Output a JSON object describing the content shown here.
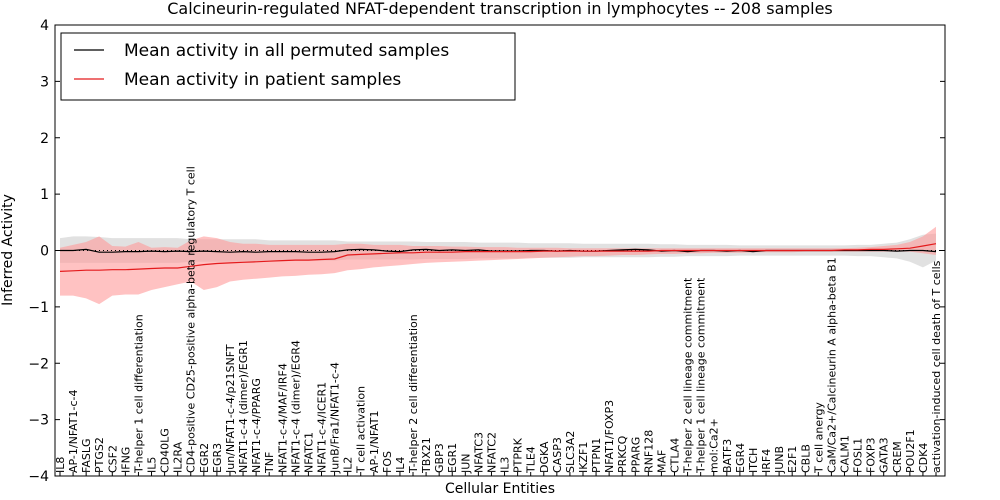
{
  "chart_data": {
    "type": "line",
    "title": "Calcineurin-regulated NFAT-dependent transcription in lymphocytes -- 208 samples",
    "xlabel": "Cellular Entities",
    "ylabel": "Inferred Activity",
    "ylim": [
      -4,
      4
    ],
    "yticks": [
      -4,
      -3,
      -2,
      -1,
      0,
      1,
      2,
      3,
      4
    ],
    "grid": false,
    "legend_position": "top-left",
    "categories": [
      "IL8",
      "AP-1/NFAT1-c-4",
      "FASLG",
      "PTGS2",
      "CSF2",
      "IFNG",
      "T-helper 1 cell differentiation",
      "IL5",
      "CD40LG",
      "IL2RA",
      "CD4-positive CD25-positive alpha-beta regulatory T cell",
      "EGR2",
      "EGR3",
      "Jun/NFAT1-c-4/p21SNFT",
      "NFAT1-c-4 (dimer)/EGR1",
      "NFAT1-c-4/PPARG",
      "TNF",
      "NFAT1-c-4/MAF/IRF4",
      "NFAT1-c-4 (dimer)/EGR4",
      "NFATC1",
      "NFAT1-c-4/ICER1",
      "JunB/Fra1/NFAT1-c-4",
      "IL2",
      "T cell activation",
      "AP-1/NFAT1",
      "FOS",
      "IL4",
      "T-helper 2 cell differentiation",
      "TBX21",
      "GBP3",
      "EGR1",
      "JUN",
      "NFATC3",
      "NFATC2",
      "IL3",
      "PTPRK",
      "TLE4",
      "DGKA",
      "CASP3",
      "SLC3A2",
      "IKZF1",
      "PTPN1",
      "NFAT1/FOXP3",
      "PRKCQ",
      "PPARG",
      "RNF128",
      "MAF",
      "CTLA4",
      "T-helper 2 cell lineage commitment",
      "T-helper 1 cell lineage commitment",
      "mol:Ca2+",
      "BATF3",
      "EGR4",
      "ITCH",
      "IRF4",
      "JUNB",
      "E2F1",
      "CBLB",
      "T cell anergy",
      "CaM/Ca2+/Calcineurin A alpha-beta B1",
      "CALM1",
      "FOSL1",
      "FOXP3",
      "GATA3",
      "CREM",
      "POU2F1",
      "CDK4",
      "activation-induced cell death of T cells"
    ],
    "series": [
      {
        "name": "Mean activity in all permuted samples",
        "color": "#000000",
        "band_color": "#c8c8c8",
        "values": [
          0,
          0,
          0.02,
          -0.03,
          -0.03,
          -0.02,
          -0.02,
          -0.01,
          -0.02,
          -0.01,
          -0.02,
          -0.01,
          -0.02,
          -0.03,
          -0.02,
          -0.03,
          -0.02,
          -0.02,
          -0.02,
          -0.03,
          -0.03,
          -0.02,
          0.01,
          0.02,
          0.01,
          -0.01,
          -0.02,
          0.01,
          0.02,
          0,
          0.01,
          0,
          0.01,
          -0.01,
          -0.01,
          -0.01,
          0,
          0,
          -0.01,
          0,
          -0.01,
          -0.01,
          0,
          0.01,
          0.02,
          0.01,
          -0.01,
          0,
          -0.02,
          0,
          0,
          -0.01,
          0,
          -0.02,
          0,
          0,
          0,
          0,
          0,
          0,
          0,
          0,
          0,
          0,
          -0.01,
          0,
          0,
          -0.02
        ],
        "lower": [
          -0.22,
          -0.22,
          -0.22,
          -0.22,
          -0.22,
          -0.22,
          -0.22,
          -0.22,
          -0.22,
          -0.22,
          -0.2,
          -0.2,
          -0.2,
          -0.2,
          -0.2,
          -0.2,
          -0.18,
          -0.18,
          -0.18,
          -0.18,
          -0.18,
          -0.18,
          -0.16,
          -0.16,
          -0.16,
          -0.16,
          -0.16,
          -0.16,
          -0.15,
          -0.15,
          -0.15,
          -0.15,
          -0.14,
          -0.14,
          -0.14,
          -0.14,
          -0.13,
          -0.13,
          -0.13,
          -0.13,
          -0.12,
          -0.12,
          -0.12,
          -0.12,
          -0.12,
          -0.12,
          -0.11,
          -0.11,
          -0.1,
          -0.1,
          -0.1,
          -0.1,
          -0.09,
          -0.09,
          -0.09,
          -0.09,
          -0.09,
          -0.09,
          -0.09,
          -0.09,
          -0.09,
          -0.1,
          -0.1,
          -0.12,
          -0.14,
          -0.2,
          -0.3,
          -0.18
        ],
        "upper": [
          0.22,
          0.25,
          0.25,
          0.24,
          0.22,
          0.22,
          0.22,
          0.22,
          0.22,
          0.22,
          0.2,
          0.2,
          0.2,
          0.2,
          0.2,
          0.2,
          0.18,
          0.18,
          0.18,
          0.18,
          0.18,
          0.18,
          0.16,
          0.16,
          0.16,
          0.16,
          0.16,
          0.16,
          0.15,
          0.15,
          0.15,
          0.15,
          0.14,
          0.14,
          0.14,
          0.14,
          0.13,
          0.13,
          0.13,
          0.13,
          0.12,
          0.12,
          0.12,
          0.12,
          0.12,
          0.12,
          0.11,
          0.11,
          0.1,
          0.1,
          0.1,
          0.1,
          0.09,
          0.09,
          0.09,
          0.09,
          0.09,
          0.09,
          0.09,
          0.09,
          0.09,
          0.1,
          0.1,
          0.12,
          0.14,
          0.2,
          0.28,
          0.3
        ]
      },
      {
        "name": "Mean activity in patient samples",
        "color": "#e41a1c",
        "band_color": "#ff9999",
        "values": [
          -0.37,
          -0.36,
          -0.35,
          -0.35,
          -0.34,
          -0.34,
          -0.33,
          -0.32,
          -0.31,
          -0.31,
          -0.28,
          -0.25,
          -0.23,
          -0.22,
          -0.21,
          -0.2,
          -0.19,
          -0.18,
          -0.17,
          -0.17,
          -0.16,
          -0.15,
          -0.08,
          -0.07,
          -0.06,
          -0.05,
          -0.04,
          -0.04,
          -0.03,
          -0.03,
          -0.03,
          -0.02,
          -0.02,
          -0.02,
          -0.02,
          -0.02,
          -0.02,
          -0.01,
          -0.01,
          -0.01,
          -0.01,
          -0.01,
          -0.01,
          -0.01,
          -0.01,
          -0.01,
          0,
          0,
          0,
          0,
          0,
          0,
          0,
          0,
          0,
          0,
          0,
          0,
          0,
          0,
          0.01,
          0.01,
          0.02,
          0.02,
          0.03,
          0.04,
          0.08,
          0.12
        ],
        "lower": [
          -0.8,
          -0.8,
          -0.85,
          -0.95,
          -0.8,
          -0.78,
          -0.78,
          -0.7,
          -0.65,
          -0.6,
          -0.55,
          -0.7,
          -0.65,
          -0.55,
          -0.52,
          -0.5,
          -0.48,
          -0.46,
          -0.45,
          -0.43,
          -0.42,
          -0.4,
          -0.35,
          -0.33,
          -0.3,
          -0.28,
          -0.26,
          -0.24,
          -0.22,
          -0.21,
          -0.2,
          -0.19,
          -0.18,
          -0.17,
          -0.16,
          -0.15,
          -0.14,
          -0.13,
          -0.12,
          -0.11,
          -0.1,
          -0.1,
          -0.09,
          -0.08,
          -0.08,
          -0.07,
          -0.06,
          -0.06,
          -0.05,
          -0.05,
          -0.04,
          -0.04,
          -0.04,
          -0.03,
          -0.03,
          -0.03,
          -0.03,
          -0.02,
          -0.02,
          -0.02,
          -0.02,
          -0.02,
          -0.02,
          -0.02,
          -0.02,
          -0.02,
          -0.05,
          -0.08
        ],
        "upper": [
          0.05,
          0.1,
          0.15,
          0.25,
          0.08,
          0.07,
          0.15,
          0.05,
          0.06,
          0.05,
          0.18,
          0.25,
          0.22,
          0.15,
          0.12,
          0.12,
          0.1,
          0.1,
          0.1,
          0.1,
          0.1,
          0.1,
          0.12,
          0.12,
          0.1,
          0.1,
          0.1,
          0.08,
          0.08,
          0.08,
          0.07,
          0.07,
          0.06,
          0.06,
          0.06,
          0.05,
          0.05,
          0.05,
          0.05,
          0.04,
          0.04,
          0.04,
          0.04,
          0.04,
          0.04,
          0.04,
          0.04,
          0.04,
          0.04,
          0.04,
          0.04,
          0.04,
          0.04,
          0.04,
          0.04,
          0.04,
          0.04,
          0.04,
          0.04,
          0.04,
          0.04,
          0.05,
          0.06,
          0.08,
          0.1,
          0.15,
          0.25,
          0.42
        ]
      }
    ]
  }
}
